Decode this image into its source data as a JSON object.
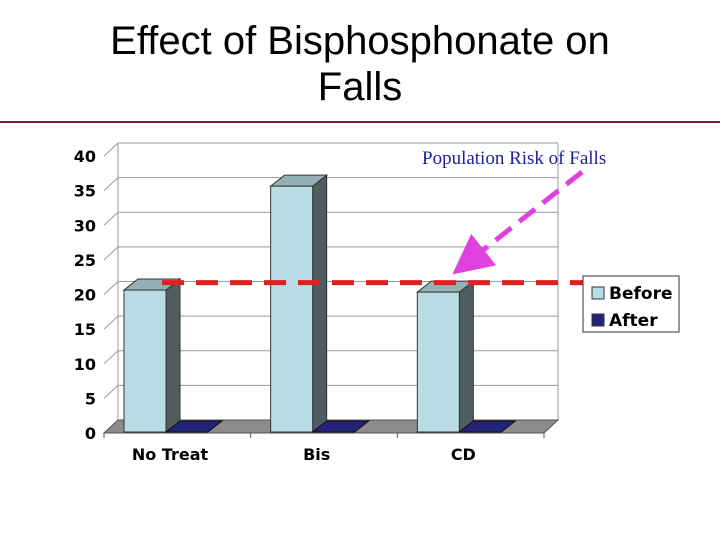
{
  "slide": {
    "title_line1": "Effect of Bisphosphonate on",
    "title_line2": "Falls"
  },
  "chart_data": {
    "type": "bar",
    "categories": [
      "No Treat",
      "Bis",
      "CD"
    ],
    "series": [
      {
        "name": "Before",
        "values": [
          20.5,
          35.5,
          20.2
        ],
        "color": "#b9dde4"
      },
      {
        "name": "After",
        "values": [
          0,
          0,
          0
        ],
        "color": "#23237a"
      }
    ],
    "ylim": [
      0,
      40
    ],
    "yticks": [
      0,
      5,
      10,
      15,
      20,
      25,
      30,
      35,
      40
    ],
    "grid": true,
    "legend_position": "right",
    "reference_line": {
      "value": 22,
      "color": "#e02020"
    },
    "annotation": {
      "text": "Population Risk of Falls",
      "color": "#e040e0"
    }
  }
}
